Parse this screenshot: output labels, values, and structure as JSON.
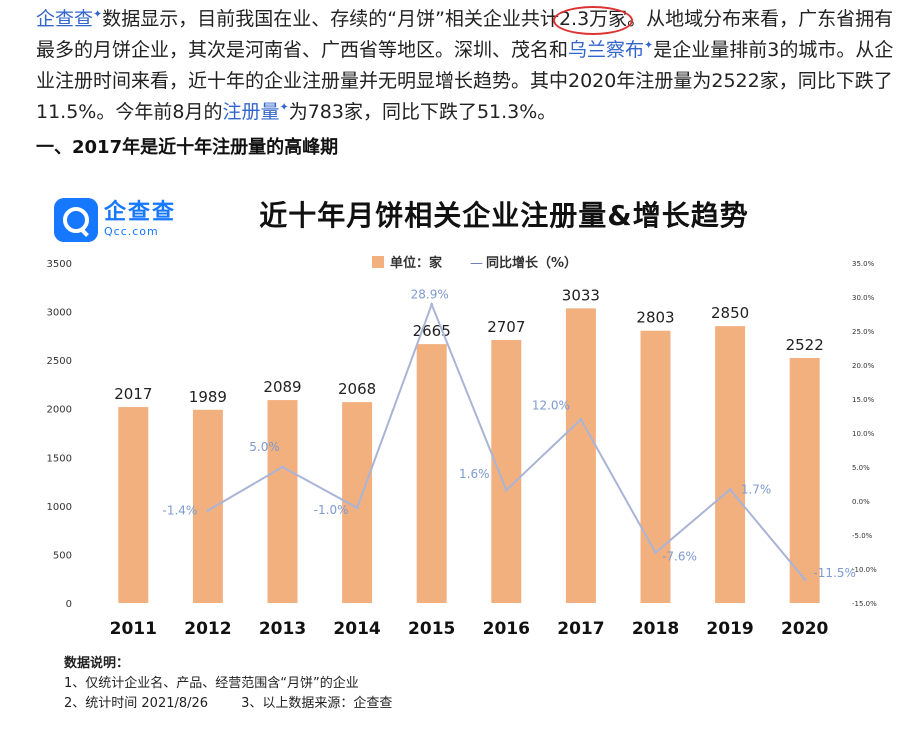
{
  "article": {
    "brand_link": "企查查",
    "text1": "数据显示，目前我国在业、存续的“月饼”相关企业共计",
    "highlight": "2.3万家",
    "text2": "。从地域分布来看，广东省拥有最多的月饼企业，其次是河南省、广西省等地区。深圳、茂名和",
    "place_link": "乌兰察布",
    "text3": "是企业量排前3的城市。从企业注册时间来看，近十年的企业注册量并无明显增长趋势。其中2020年注册量为2522家，同比下跌了11.5%。今年前8月的",
    "reg_link": "注册量",
    "text4": "为783家，同比下跌了51.3%。"
  },
  "heading": "一、2017年是近十年注册量的高峰期",
  "logo": {
    "cn": "企查查",
    "en": "Qcc.com"
  },
  "chart_data": {
    "type": "bar",
    "title": "近十年月饼相关企业注册量&增长趋势",
    "categories": [
      "2011",
      "2012",
      "2013",
      "2014",
      "2015",
      "2016",
      "2017",
      "2018",
      "2019",
      "2020"
    ],
    "series": [
      {
        "name": "单位：家",
        "type": "bar",
        "color": "#f3b07f",
        "values": [
          2017,
          1989,
          2089,
          2068,
          2665,
          2707,
          3033,
          2803,
          2850,
          2522
        ]
      },
      {
        "name": "同比增长（%）",
        "type": "line",
        "color": "#a9b4d6",
        "values": [
          null,
          -1.4,
          5.0,
          -1.0,
          28.9,
          1.6,
          12.0,
          -7.6,
          1.7,
          -11.5
        ],
        "labels": [
          "",
          "-1.4%",
          "5.0%",
          "-1.0%",
          "28.9%",
          "1.6%",
          "12.0%",
          "-7.6%",
          "1.7%",
          "-11.5%"
        ]
      }
    ],
    "ylim_left": [
      0,
      3500
    ],
    "yticks_left": [
      "0",
      "500",
      "1000",
      "1500",
      "2000",
      "2500",
      "3000",
      "3500"
    ],
    "ylim_right": [
      -15,
      35
    ],
    "yticks_right": [
      "-15.0%",
      "-10.0%",
      "-5.0%",
      "0.0%",
      "5.0%",
      "10.0%",
      "15.0%",
      "20.0%",
      "25.0%",
      "30.0%",
      "35.0%"
    ],
    "legend": {
      "bar_label": "单位：家",
      "line_label": "同比增长（%）",
      "separator": "—",
      "placement": "top-center"
    },
    "grid": false
  },
  "notes": {
    "title": "数据说明：",
    "line1": "1、仅统计企业名、产品、经营范围含“月饼”的企业",
    "line2": "2、统计时间 2021/8/26        3、以上数据来源：企查查"
  }
}
